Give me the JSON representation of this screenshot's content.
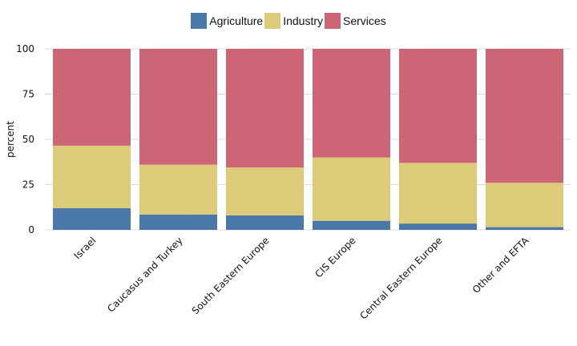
{
  "chart_data": {
    "type": "bar",
    "stacked": true,
    "categories": [
      "Israel",
      "Caucasus and Turkey",
      "South Eastern Europe",
      "CIS Europe",
      "Central Eastern Europe",
      "Other and EFTA"
    ],
    "series": [
      {
        "name": "Agriculture",
        "color": "#4a78a8",
        "values": [
          12,
          8.5,
          8,
          5,
          3.5,
          1.5
        ]
      },
      {
        "name": "Industry",
        "color": "#dccb79",
        "values": [
          34.5,
          27.5,
          26.5,
          35,
          33.5,
          24.5
        ]
      },
      {
        "name": "Services",
        "color": "#cc6677",
        "values": [
          53.5,
          64,
          65.5,
          60,
          63,
          74
        ]
      }
    ],
    "ylabel": "percent",
    "xlabel": "",
    "ylim": [
      0,
      100
    ],
    "yticks": [
      0,
      25,
      50,
      75,
      100
    ],
    "grid": true,
    "legend_position": "top"
  }
}
